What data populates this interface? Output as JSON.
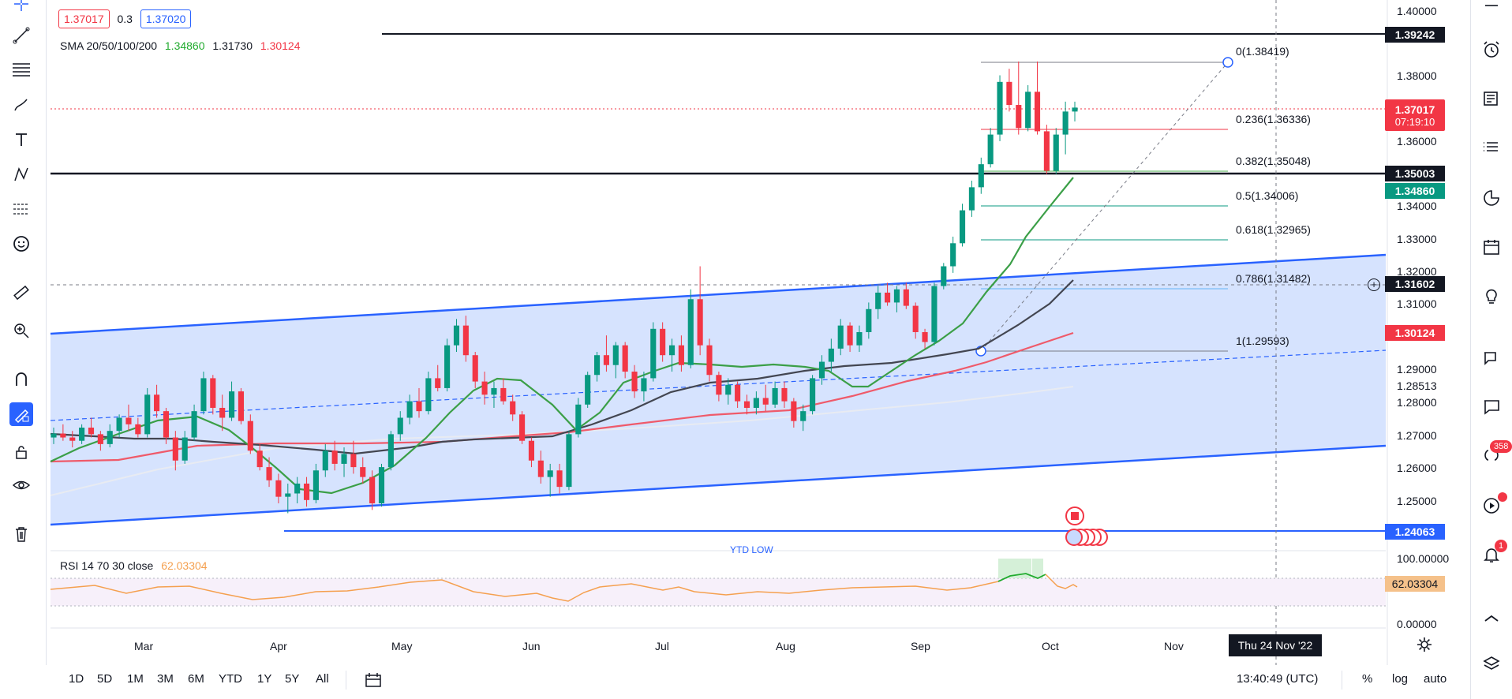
{
  "header": {
    "bid": "1.37017",
    "spread": "0.3",
    "ask": "1.37020",
    "sma_legend_label": "SMA 20/50/100/200",
    "sma_values": [
      "1.34860",
      "1.31730",
      "1.30124"
    ],
    "rsi_legend_label": "RSI 14 70 30 close",
    "rsi_value": "62.03304"
  },
  "price_axis": {
    "labels": [
      "1.40000",
      "1.38000",
      "1.36000",
      "1.34000",
      "1.33000",
      "1.32000",
      "1.31000",
      "1.29000",
      "1.28513",
      "1.28000",
      "1.27000",
      "1.26000",
      "1.25000"
    ],
    "rsi_labels": [
      "100.00000",
      "0.00000"
    ],
    "tags": {
      "resistance": "1.39242",
      "last_price": "1.37017",
      "countdown": "07:19:10",
      "support": "1.35003",
      "sma20": "1.34860",
      "crosshair": "1.31602",
      "sma200": "1.30124",
      "ytd_low": "1.24063",
      "rsi": "62.03304"
    }
  },
  "fib_levels": [
    {
      "label": "0(1.38419)",
      "color": "#787b86"
    },
    {
      "label": "0.236(1.36336)",
      "color": "#f23645"
    },
    {
      "label": "0.382(1.35048)",
      "color": "#4caf50"
    },
    {
      "label": "0.5(1.34006)",
      "color": "#089981"
    },
    {
      "label": "0.618(1.32965)",
      "color": "#089981"
    },
    {
      "label": "0.786(1.31482)",
      "color": "#64b5f6"
    },
    {
      "label": "1(1.29593)",
      "color": "#787b86"
    }
  ],
  "annotations": {
    "ytd_low_text": "YTD LOW"
  },
  "time_axis": {
    "months": [
      "Mar",
      "Apr",
      "May",
      "Jun",
      "Jul",
      "Aug",
      "Sep",
      "Oct",
      "Nov"
    ],
    "crosshair_date": "Thu 24 Nov '22"
  },
  "bottom_bar": {
    "timeframes": [
      "1D",
      "5D",
      "1M",
      "3M",
      "6M",
      "YTD",
      "1Y",
      "5Y",
      "All"
    ],
    "clock": "13:40:49 (UTC)",
    "percent": "%",
    "log": "log",
    "auto": "auto"
  },
  "right_toolbar": {
    "badges": [
      "358",
      "1"
    ]
  },
  "chart_data": {
    "type": "candlestick",
    "instrument_unit": "price",
    "ylim": [
      1.235,
      1.405
    ],
    "candles": [
      [
        1.27,
        1.273,
        1.268,
        1.2712
      ],
      [
        1.2712,
        1.274,
        1.269,
        1.27
      ],
      [
        1.27,
        1.272,
        1.267,
        1.269
      ],
      [
        1.269,
        1.274,
        1.268,
        1.273
      ],
      [
        1.273,
        1.276,
        1.27,
        1.271
      ],
      [
        1.271,
        1.272,
        1.266,
        1.268
      ],
      [
        1.268,
        1.274,
        1.267,
        1.272
      ],
      [
        1.272,
        1.277,
        1.27,
        1.276
      ],
      [
        1.276,
        1.28,
        1.272,
        1.274
      ],
      [
        1.274,
        1.276,
        1.27,
        1.271
      ],
      [
        1.271,
        1.285,
        1.27,
        1.283
      ],
      [
        1.283,
        1.286,
        1.276,
        1.278
      ],
      [
        1.278,
        1.279,
        1.268,
        1.27
      ],
      [
        1.27,
        1.272,
        1.26,
        1.263
      ],
      [
        1.263,
        1.272,
        1.262,
        1.27
      ],
      [
        1.27,
        1.28,
        1.269,
        1.278
      ],
      [
        1.278,
        1.29,
        1.277,
        1.288
      ],
      [
        1.288,
        1.289,
        1.277,
        1.279
      ],
      [
        1.279,
        1.283,
        1.272,
        1.276
      ],
      [
        1.276,
        1.287,
        1.275,
        1.284
      ],
      [
        1.284,
        1.285,
        1.274,
        1.275
      ],
      [
        1.275,
        1.277,
        1.265,
        1.266
      ],
      [
        1.266,
        1.268,
        1.26,
        1.261
      ],
      [
        1.261,
        1.264,
        1.255,
        1.257
      ],
      [
        1.257,
        1.259,
        1.25,
        1.252
      ],
      [
        1.252,
        1.256,
        1.247,
        1.253
      ],
      [
        1.253,
        1.258,
        1.25,
        1.256
      ],
      [
        1.256,
        1.258,
        1.249,
        1.251
      ],
      [
        1.251,
        1.262,
        1.25,
        1.26
      ],
      [
        1.26,
        1.268,
        1.258,
        1.266
      ],
      [
        1.266,
        1.269,
        1.26,
        1.262
      ],
      [
        1.262,
        1.267,
        1.258,
        1.265
      ],
      [
        1.265,
        1.269,
        1.259,
        1.261
      ],
      [
        1.261,
        1.264,
        1.256,
        1.258
      ],
      [
        1.258,
        1.26,
        1.248,
        1.25
      ],
      [
        1.25,
        1.262,
        1.249,
        1.261
      ],
      [
        1.261,
        1.272,
        1.26,
        1.271
      ],
      [
        1.271,
        1.278,
        1.269,
        1.276
      ],
      [
        1.276,
        1.283,
        1.274,
        1.281
      ],
      [
        1.281,
        1.285,
        1.276,
        1.278
      ],
      [
        1.278,
        1.29,
        1.277,
        1.288
      ],
      [
        1.288,
        1.292,
        1.284,
        1.285
      ],
      [
        1.285,
        1.3,
        1.284,
        1.298
      ],
      [
        1.298,
        1.306,
        1.296,
        1.304
      ],
      [
        1.304,
        1.307,
        1.293,
        1.295
      ],
      [
        1.295,
        1.296,
        1.285,
        1.287
      ],
      [
        1.287,
        1.29,
        1.28,
        1.283
      ],
      [
        1.283,
        1.287,
        1.279,
        1.285
      ],
      [
        1.285,
        1.288,
        1.28,
        1.281
      ],
      [
        1.281,
        1.283,
        1.275,
        1.277
      ],
      [
        1.277,
        1.278,
        1.268,
        1.269
      ],
      [
        1.269,
        1.27,
        1.261,
        1.263
      ],
      [
        1.263,
        1.266,
        1.256,
        1.258
      ],
      [
        1.258,
        1.262,
        1.252,
        1.26
      ],
      [
        1.26,
        1.262,
        1.253,
        1.255
      ],
      [
        1.255,
        1.272,
        1.254,
        1.271
      ],
      [
        1.271,
        1.282,
        1.27,
        1.28
      ],
      [
        1.28,
        1.29,
        1.279,
        1.289
      ],
      [
        1.289,
        1.296,
        1.287,
        1.295
      ],
      [
        1.295,
        1.301,
        1.29,
        1.292
      ],
      [
        1.292,
        1.299,
        1.288,
        1.298
      ],
      [
        1.298,
        1.299,
        1.288,
        1.29
      ],
      [
        1.29,
        1.292,
        1.282,
        1.284
      ],
      [
        1.284,
        1.29,
        1.281,
        1.288
      ],
      [
        1.288,
        1.305,
        1.287,
        1.303
      ],
      [
        1.303,
        1.305,
        1.293,
        1.295
      ],
      [
        1.295,
        1.3,
        1.29,
        1.298
      ],
      [
        1.298,
        1.301,
        1.29,
        1.292
      ],
      [
        1.292,
        1.315,
        1.291,
        1.312
      ],
      [
        1.312,
        1.322,
        1.295,
        1.298
      ],
      [
        1.298,
        1.3,
        1.287,
        1.289
      ],
      [
        1.289,
        1.29,
        1.281,
        1.283
      ],
      [
        1.283,
        1.288,
        1.28,
        1.286
      ],
      [
        1.286,
        1.287,
        1.279,
        1.281
      ],
      [
        1.281,
        1.283,
        1.277,
        1.279
      ],
      [
        1.279,
        1.284,
        1.277,
        1.282
      ],
      [
        1.282,
        1.286,
        1.278,
        1.28
      ],
      [
        1.28,
        1.287,
        1.279,
        1.285
      ],
      [
        1.285,
        1.287,
        1.279,
        1.281
      ],
      [
        1.281,
        1.282,
        1.273,
        1.275
      ],
      [
        1.275,
        1.28,
        1.272,
        1.278
      ],
      [
        1.278,
        1.289,
        1.277,
        1.288
      ],
      [
        1.288,
        1.295,
        1.286,
        1.293
      ],
      [
        1.293,
        1.3,
        1.29,
        1.297
      ],
      [
        1.297,
        1.306,
        1.295,
        1.304
      ],
      [
        1.304,
        1.305,
        1.296,
        1.298
      ],
      [
        1.298,
        1.304,
        1.296,
        1.302
      ],
      [
        1.302,
        1.311,
        1.3,
        1.309
      ],
      [
        1.309,
        1.316,
        1.306,
        1.314
      ],
      [
        1.314,
        1.317,
        1.31,
        1.311
      ],
      [
        1.311,
        1.316,
        1.308,
        1.315
      ],
      [
        1.315,
        1.317,
        1.309,
        1.31
      ],
      [
        1.31,
        1.311,
        1.3,
        1.302
      ],
      [
        1.302,
        1.303,
        1.297,
        1.299
      ],
      [
        1.299,
        1.317,
        1.298,
        1.316
      ],
      [
        1.316,
        1.323,
        1.315,
        1.322
      ],
      [
        1.322,
        1.331,
        1.32,
        1.329
      ],
      [
        1.329,
        1.341,
        1.328,
        1.339
      ],
      [
        1.339,
        1.348,
        1.337,
        1.346
      ],
      [
        1.346,
        1.355,
        1.344,
        1.353
      ],
      [
        1.353,
        1.364,
        1.352,
        1.362
      ],
      [
        1.362,
        1.38,
        1.36,
        1.378
      ],
      [
        1.378,
        1.382,
        1.369,
        1.371
      ],
      [
        1.371,
        1.3842,
        1.362,
        1.364
      ],
      [
        1.364,
        1.377,
        1.363,
        1.375
      ],
      [
        1.375,
        1.3842,
        1.362,
        1.363
      ],
      [
        1.363,
        1.365,
        1.35,
        1.351
      ],
      [
        1.351,
        1.364,
        1.35,
        1.362
      ],
      [
        1.362,
        1.372,
        1.356,
        1.369
      ],
      [
        1.369,
        1.372,
        1.366,
        1.3702
      ]
    ]
  }
}
